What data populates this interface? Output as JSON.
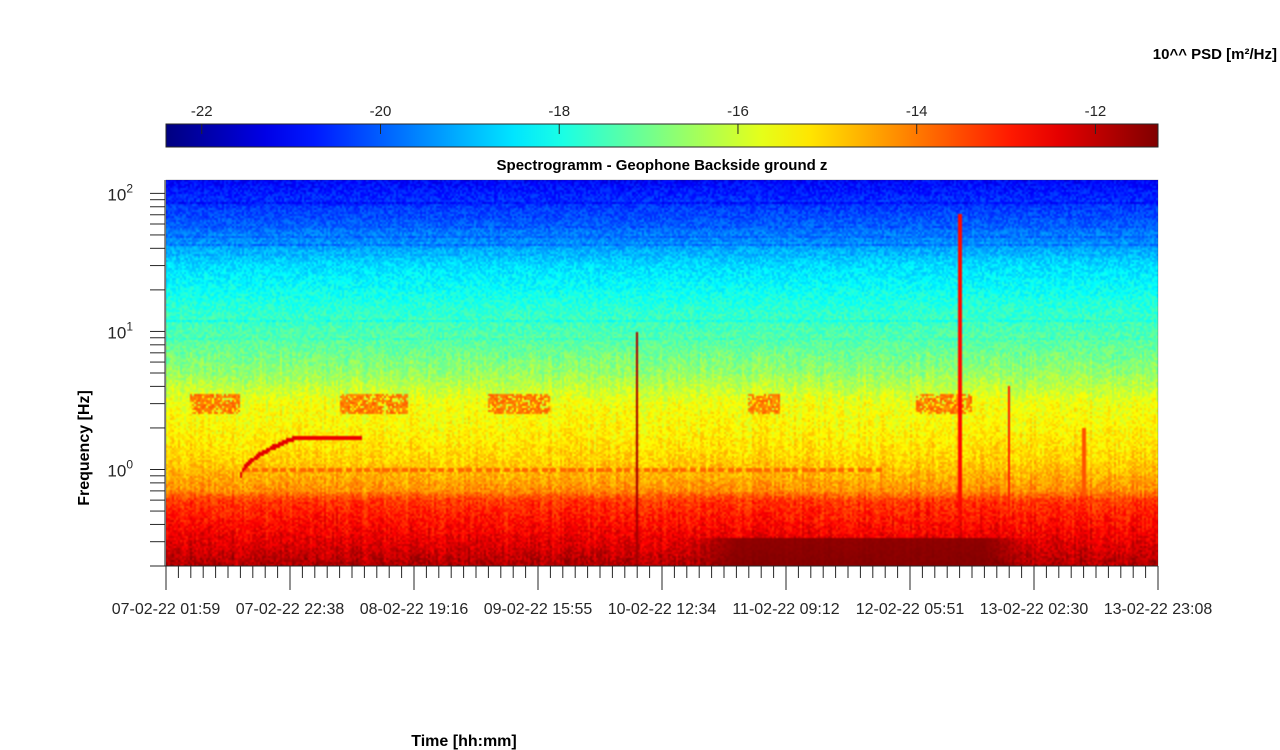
{
  "chart_data": {
    "type": "heatmap",
    "title": "Spectrogramm - Geophone Backside ground z",
    "xlabel": "Time [hh:mm]",
    "ylabel": "Frequency [Hz]",
    "y_scale": "log",
    "ylim": [
      0.2,
      125
    ],
    "y_ticks": [
      {
        "value": 1,
        "base": "10",
        "exp": "0"
      },
      {
        "value": 10,
        "base": "10",
        "exp": "1"
      },
      {
        "value": 100,
        "base": "10",
        "exp": "2"
      }
    ],
    "x_ticks": [
      {
        "value": 0,
        "label": "07-02-22  01:59"
      },
      {
        "value": 1,
        "label": "07-02-22  22:38"
      },
      {
        "value": 2,
        "label": "08-02-22  19:16"
      },
      {
        "value": 3,
        "label": "09-02-22  15:55"
      },
      {
        "value": 4,
        "label": "10-02-22  12:34"
      },
      {
        "value": 5,
        "label": "11-02-22  09:12"
      },
      {
        "value": 6,
        "label": "12-02-22  05:51"
      },
      {
        "value": 7,
        "label": "13-02-22  02:30"
      },
      {
        "value": 8,
        "label": "13-02-22  23:08"
      }
    ],
    "colorbar": {
      "label": "10^^ PSD [m²/Hz]",
      "colormap": "jet",
      "range": [
        -22.4,
        -11.3
      ],
      "ticks": [
        {
          "value": -22,
          "label": "-22"
        },
        {
          "value": -20,
          "label": "-20"
        },
        {
          "value": -18,
          "label": "-18"
        },
        {
          "value": -16,
          "label": "-16"
        },
        {
          "value": -14,
          "label": "-14"
        },
        {
          "value": -12,
          "label": "-12"
        }
      ]
    },
    "features": [
      {
        "kind": "background_profile",
        "freq_hz": [
          0.2,
          0.3,
          0.6,
          0.7,
          0.9,
          1.2,
          2.0,
          3.0,
          5.0,
          8.0,
          15.0,
          30.0,
          60.0,
          125.0
        ],
        "log10_psd": [
          -11.8,
          -12.4,
          -13.3,
          -14.2,
          -14.6,
          -15.0,
          -15.4,
          -15.6,
          -16.6,
          -17.2,
          -17.8,
          -18.6,
          -20.0,
          -21.0
        ]
      },
      {
        "kind": "tonal_band",
        "freq_hz": 3.0,
        "log10_psd": -14.0,
        "time_ranges": [
          [
            0.2,
            0.6
          ],
          [
            1.4,
            1.95
          ],
          [
            2.6,
            3.1
          ],
          [
            4.7,
            4.95
          ],
          [
            6.05,
            6.5
          ]
        ]
      },
      {
        "kind": "tonal_line",
        "freq_hz": 1.0,
        "log10_psd": -13.8,
        "time_range": [
          0.6,
          5.8
        ]
      },
      {
        "kind": "chirp",
        "time_start": 0.6,
        "time_end": 1.05,
        "freq_start_hz": 0.85,
        "freq_end_hz": 1.7,
        "log10_psd": -12.4
      },
      {
        "kind": "tonal_line",
        "freq_hz": 1.7,
        "log10_psd": -12.5,
        "time_range": [
          1.05,
          1.58
        ]
      },
      {
        "kind": "transient",
        "time": 3.8,
        "freq_range_hz": [
          0.2,
          10
        ],
        "log10_psd": -11.7
      },
      {
        "kind": "transient",
        "time": 6.4,
        "freq_range_hz": [
          0.3,
          70
        ],
        "log10_psd": -12.8
      },
      {
        "kind": "transient",
        "time": 6.8,
        "freq_range_hz": [
          0.3,
          4
        ],
        "log10_psd": -13.0
      },
      {
        "kind": "transient",
        "time": 7.4,
        "freq_range_hz": [
          0.3,
          2
        ],
        "log10_psd": -13.6
      },
      {
        "kind": "low_freq_high_energy",
        "time_range": [
          4.2,
          7.0
        ],
        "freq_range_hz": [
          0.2,
          0.32
        ],
        "log10_psd": -11.3
      }
    ]
  }
}
